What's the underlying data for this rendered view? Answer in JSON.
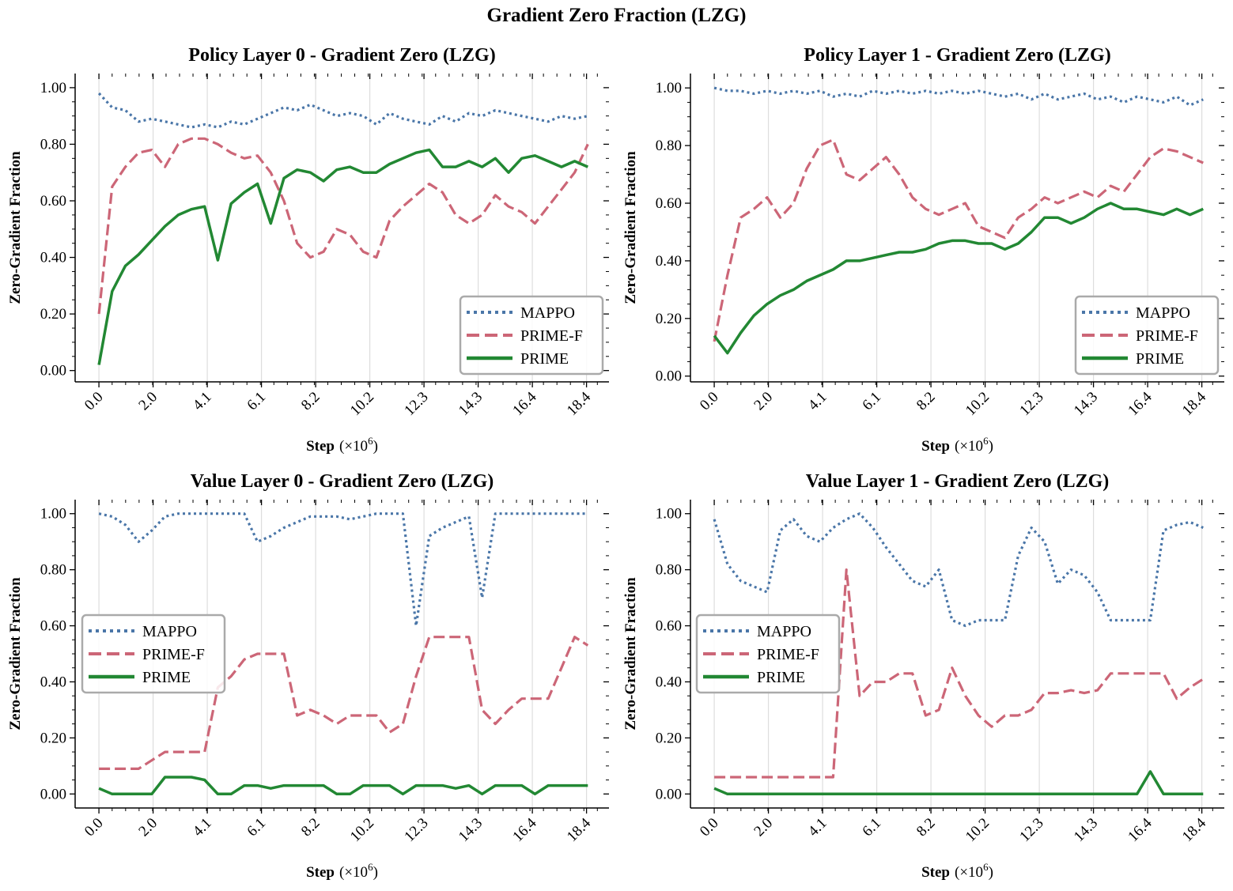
{
  "suptitle": "Gradient Zero Fraction (LZG)",
  "colors": {
    "MAPPO": "#4a76a8",
    "PRIME-F": "#cc6677",
    "PRIME": "#228833",
    "grid": "#dddddd"
  },
  "x_tick_labels": [
    "0.0",
    "2.0",
    "4.1",
    "6.1",
    "8.2",
    "10.2",
    "12.3",
    "14.3",
    "16.4",
    "18.4"
  ],
  "y_tick_labels": [
    "0.00",
    "0.20",
    "0.40",
    "0.60",
    "0.80",
    "1.00"
  ],
  "xlabel_main": "Step",
  "xlabel_unit": "(×10",
  "xlabel_exp": "6",
  "xlabel_close": ")",
  "ylabel": "Zero-Gradient Fraction",
  "chart_data": [
    {
      "type": "line",
      "title": "Policy Layer 0 - Gradient Zero (LZG)",
      "xlabel": "Step (×10^6)",
      "ylabel": "Zero-Gradient Fraction",
      "xlim": [
        -0.9,
        19.3
      ],
      "ylim": [
        -0.04,
        1.05
      ],
      "legend": "lower right",
      "x": [
        0.0,
        0.5,
        1.0,
        1.5,
        2.0,
        2.5,
        3.0,
        3.5,
        4.0,
        4.5,
        5.0,
        5.5,
        6.0,
        6.5,
        7.0,
        7.5,
        8.0,
        8.5,
        9.0,
        9.5,
        10.0,
        10.5,
        11.0,
        11.5,
        12.0,
        12.5,
        13.0,
        13.5,
        14.0,
        14.5,
        15.0,
        15.5,
        16.0,
        16.5,
        17.0,
        17.5,
        18.0,
        18.5
      ],
      "series": [
        {
          "name": "MAPPO",
          "style": "dotted",
          "values": [
            0.98,
            0.93,
            0.92,
            0.88,
            0.89,
            0.88,
            0.87,
            0.86,
            0.87,
            0.86,
            0.88,
            0.87,
            0.89,
            0.91,
            0.93,
            0.92,
            0.94,
            0.92,
            0.9,
            0.91,
            0.9,
            0.87,
            0.91,
            0.89,
            0.88,
            0.87,
            0.9,
            0.88,
            0.91,
            0.9,
            0.92,
            0.91,
            0.9,
            0.89,
            0.88,
            0.9,
            0.89,
            0.9
          ]
        },
        {
          "name": "PRIME-F",
          "style": "dashed",
          "values": [
            0.2,
            0.65,
            0.72,
            0.77,
            0.78,
            0.72,
            0.8,
            0.82,
            0.82,
            0.8,
            0.77,
            0.75,
            0.76,
            0.7,
            0.6,
            0.45,
            0.4,
            0.42,
            0.5,
            0.48,
            0.42,
            0.4,
            0.53,
            0.58,
            0.62,
            0.66,
            0.63,
            0.55,
            0.52,
            0.55,
            0.62,
            0.58,
            0.56,
            0.52,
            0.58,
            0.64,
            0.7,
            0.8
          ]
        },
        {
          "name": "PRIME",
          "style": "solid",
          "values": [
            0.02,
            0.28,
            0.37,
            0.41,
            0.46,
            0.51,
            0.55,
            0.57,
            0.58,
            0.39,
            0.59,
            0.63,
            0.66,
            0.52,
            0.68,
            0.71,
            0.7,
            0.67,
            0.71,
            0.72,
            0.7,
            0.7,
            0.73,
            0.75,
            0.77,
            0.78,
            0.72,
            0.72,
            0.74,
            0.72,
            0.75,
            0.7,
            0.75,
            0.76,
            0.74,
            0.72,
            0.74,
            0.72
          ]
        }
      ]
    },
    {
      "type": "line",
      "title": "Policy Layer 1 - Gradient Zero (LZG)",
      "xlabel": "Step (×10^6)",
      "ylabel": "Zero-Gradient Fraction",
      "xlim": [
        -0.9,
        19.3
      ],
      "ylim": [
        -0.02,
        1.05
      ],
      "legend": "lower right",
      "x": [
        0.0,
        0.5,
        1.0,
        1.5,
        2.0,
        2.5,
        3.0,
        3.5,
        4.0,
        4.5,
        5.0,
        5.5,
        6.0,
        6.5,
        7.0,
        7.5,
        8.0,
        8.5,
        9.0,
        9.5,
        10.0,
        10.5,
        11.0,
        11.5,
        12.0,
        12.5,
        13.0,
        13.5,
        14.0,
        14.5,
        15.0,
        15.5,
        16.0,
        16.5,
        17.0,
        17.5,
        18.0,
        18.5
      ],
      "series": [
        {
          "name": "MAPPO",
          "style": "dotted",
          "values": [
            1.0,
            0.99,
            0.99,
            0.98,
            0.99,
            0.98,
            0.99,
            0.98,
            0.99,
            0.97,
            0.98,
            0.97,
            0.99,
            0.98,
            0.99,
            0.98,
            0.99,
            0.98,
            0.99,
            0.98,
            0.99,
            0.98,
            0.97,
            0.98,
            0.96,
            0.98,
            0.96,
            0.97,
            0.98,
            0.96,
            0.97,
            0.95,
            0.97,
            0.96,
            0.95,
            0.97,
            0.94,
            0.96
          ]
        },
        {
          "name": "PRIME-F",
          "style": "dashed",
          "values": [
            0.12,
            0.35,
            0.55,
            0.58,
            0.62,
            0.55,
            0.6,
            0.72,
            0.8,
            0.82,
            0.7,
            0.68,
            0.72,
            0.76,
            0.7,
            0.62,
            0.58,
            0.56,
            0.58,
            0.6,
            0.52,
            0.5,
            0.48,
            0.55,
            0.58,
            0.62,
            0.6,
            0.62,
            0.64,
            0.62,
            0.66,
            0.64,
            0.7,
            0.76,
            0.79,
            0.78,
            0.76,
            0.74
          ]
        },
        {
          "name": "PRIME",
          "style": "solid",
          "values": [
            0.14,
            0.08,
            0.15,
            0.21,
            0.25,
            0.28,
            0.3,
            0.33,
            0.35,
            0.37,
            0.4,
            0.4,
            0.41,
            0.42,
            0.43,
            0.43,
            0.44,
            0.46,
            0.47,
            0.47,
            0.46,
            0.46,
            0.44,
            0.46,
            0.5,
            0.55,
            0.55,
            0.53,
            0.55,
            0.58,
            0.6,
            0.58,
            0.58,
            0.57,
            0.56,
            0.58,
            0.56,
            0.58
          ]
        }
      ]
    },
    {
      "type": "line",
      "title": "Value Layer 0 - Gradient Zero (LZG)",
      "xlabel": "Step (×10^6)",
      "ylabel": "Zero-Gradient Fraction",
      "xlim": [
        -0.9,
        19.3
      ],
      "ylim": [
        -0.05,
        1.05
      ],
      "legend": "center left",
      "x": [
        0.0,
        0.5,
        1.0,
        1.5,
        2.0,
        2.5,
        3.0,
        3.5,
        4.0,
        4.5,
        5.0,
        5.5,
        6.0,
        6.5,
        7.0,
        7.5,
        8.0,
        8.5,
        9.0,
        9.5,
        10.0,
        10.5,
        11.0,
        11.5,
        12.0,
        12.5,
        13.0,
        13.5,
        14.0,
        14.5,
        15.0,
        15.5,
        16.0,
        16.5,
        17.0,
        17.5,
        18.0,
        18.5
      ],
      "series": [
        {
          "name": "MAPPO",
          "style": "dotted",
          "values": [
            1.0,
            0.99,
            0.96,
            0.9,
            0.94,
            0.99,
            1.0,
            1.0,
            1.0,
            1.0,
            1.0,
            1.0,
            0.9,
            0.92,
            0.95,
            0.97,
            0.99,
            0.99,
            0.99,
            0.98,
            0.99,
            1.0,
            1.0,
            1.0,
            0.6,
            0.92,
            0.95,
            0.97,
            0.99,
            0.7,
            1.0,
            1.0,
            1.0,
            1.0,
            1.0,
            1.0,
            1.0,
            1.0
          ]
        },
        {
          "name": "PRIME-F",
          "style": "dashed",
          "values": [
            0.09,
            0.09,
            0.09,
            0.09,
            0.12,
            0.15,
            0.15,
            0.15,
            0.15,
            0.38,
            0.42,
            0.48,
            0.5,
            0.5,
            0.5,
            0.28,
            0.3,
            0.28,
            0.25,
            0.28,
            0.28,
            0.28,
            0.22,
            0.25,
            0.42,
            0.56,
            0.56,
            0.56,
            0.56,
            0.3,
            0.25,
            0.3,
            0.34,
            0.34,
            0.34,
            0.45,
            0.56,
            0.53
          ]
        },
        {
          "name": "PRIME",
          "style": "solid",
          "values": [
            0.02,
            0.0,
            0.0,
            0.0,
            0.0,
            0.06,
            0.06,
            0.06,
            0.05,
            0.0,
            0.0,
            0.03,
            0.03,
            0.02,
            0.03,
            0.03,
            0.03,
            0.03,
            0.0,
            0.0,
            0.03,
            0.03,
            0.03,
            0.0,
            0.03,
            0.03,
            0.03,
            0.02,
            0.03,
            0.0,
            0.03,
            0.03,
            0.03,
            0.0,
            0.03,
            0.03,
            0.03,
            0.03
          ]
        }
      ]
    },
    {
      "type": "line",
      "title": "Value Layer 1 - Gradient Zero (LZG)",
      "xlabel": "Step (×10^6)",
      "ylabel": "Zero-Gradient Fraction",
      "xlim": [
        -0.9,
        19.3
      ],
      "ylim": [
        -0.05,
        1.05
      ],
      "legend": "center left",
      "x": [
        0.0,
        0.5,
        1.0,
        1.5,
        2.0,
        2.5,
        3.0,
        3.5,
        4.0,
        4.5,
        5.0,
        5.5,
        6.0,
        6.5,
        7.0,
        7.5,
        8.0,
        8.5,
        9.0,
        9.5,
        10.0,
        10.5,
        11.0,
        11.5,
        12.0,
        12.5,
        13.0,
        13.5,
        14.0,
        14.5,
        15.0,
        15.5,
        16.0,
        16.5,
        17.0,
        17.5,
        18.0,
        18.5
      ],
      "series": [
        {
          "name": "MAPPO",
          "style": "dotted",
          "values": [
            0.98,
            0.82,
            0.76,
            0.74,
            0.72,
            0.94,
            0.98,
            0.92,
            0.9,
            0.95,
            0.98,
            1.0,
            0.95,
            0.88,
            0.82,
            0.76,
            0.74,
            0.8,
            0.62,
            0.6,
            0.62,
            0.62,
            0.62,
            0.85,
            0.95,
            0.9,
            0.75,
            0.8,
            0.78,
            0.72,
            0.62,
            0.62,
            0.62,
            0.62,
            0.94,
            0.96,
            0.97,
            0.95
          ]
        },
        {
          "name": "PRIME-F",
          "style": "dashed",
          "values": [
            0.06,
            0.06,
            0.06,
            0.06,
            0.06,
            0.06,
            0.06,
            0.06,
            0.06,
            0.06,
            0.8,
            0.35,
            0.4,
            0.4,
            0.43,
            0.43,
            0.28,
            0.3,
            0.45,
            0.35,
            0.28,
            0.24,
            0.28,
            0.28,
            0.3,
            0.36,
            0.36,
            0.37,
            0.36,
            0.37,
            0.43,
            0.43,
            0.43,
            0.43,
            0.43,
            0.34,
            0.38,
            0.41
          ]
        },
        {
          "name": "PRIME",
          "style": "solid",
          "values": [
            0.02,
            0.0,
            0.0,
            0.0,
            0.0,
            0.0,
            0.0,
            0.0,
            0.0,
            0.0,
            0.0,
            0.0,
            0.0,
            0.0,
            0.0,
            0.0,
            0.0,
            0.0,
            0.0,
            0.0,
            0.0,
            0.0,
            0.0,
            0.0,
            0.0,
            0.0,
            0.0,
            0.0,
            0.0,
            0.0,
            0.0,
            0.0,
            0.0,
            0.08,
            0.0,
            0.0,
            0.0,
            0.0
          ]
        }
      ]
    }
  ]
}
